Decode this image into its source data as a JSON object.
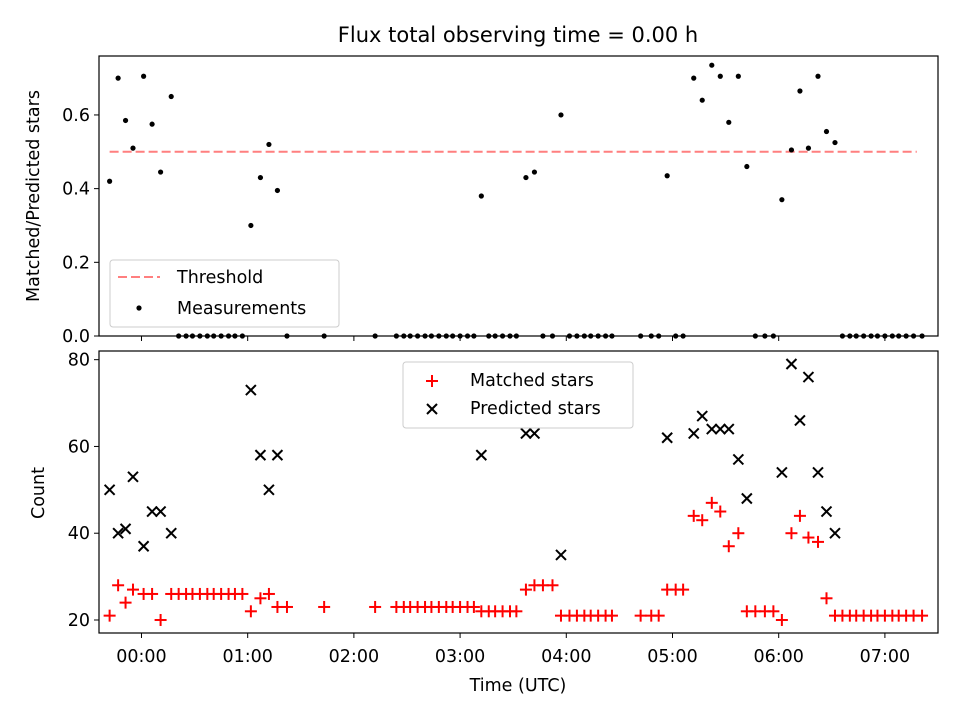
{
  "chart_data": [
    {
      "type": "scatter",
      "title": "Flux total observing time = 0.00 h",
      "xlabel": "",
      "ylabel": "Matched/Predicted stars",
      "xlim": [
        -0.4,
        7.5
      ],
      "ylim": [
        0,
        0.76
      ],
      "yticks": [
        0.0,
        0.2,
        0.4,
        0.6
      ],
      "ytick_labels": [
        "0.0",
        "0.2",
        "0.4",
        "0.6"
      ],
      "xticks": [
        0,
        1,
        2,
        3,
        4,
        5,
        6,
        7
      ],
      "grid": false,
      "legend_location": "lower left",
      "threshold": {
        "name": "Threshold",
        "color": "#ff7f7f",
        "style": "dashed",
        "x_range": [
          -0.3,
          7.3
        ],
        "value": 0.5
      },
      "series": [
        {
          "name": "Measurements",
          "color": "#000000",
          "marker": "dot",
          "points": [
            [
              -0.3,
              0.42
            ],
            [
              -0.22,
              0.7
            ],
            [
              -0.15,
              0.585
            ],
            [
              -0.08,
              0.51
            ],
            [
              0.02,
              0.705
            ],
            [
              0.1,
              0.575
            ],
            [
              0.18,
              0.445
            ],
            [
              0.28,
              0.65
            ],
            [
              0.35,
              0.0
            ],
            [
              0.42,
              0.0
            ],
            [
              0.48,
              0.0
            ],
            [
              0.55,
              0.0
            ],
            [
              0.62,
              0.0
            ],
            [
              0.68,
              0.0
            ],
            [
              0.75,
              0.0
            ],
            [
              0.82,
              0.0
            ],
            [
              0.88,
              0.0
            ],
            [
              0.95,
              0.0
            ],
            [
              1.03,
              0.3
            ],
            [
              1.12,
              0.43
            ],
            [
              1.2,
              0.52
            ],
            [
              1.28,
              0.395
            ],
            [
              1.37,
              0.0
            ],
            [
              1.72,
              0.0
            ],
            [
              2.2,
              0.0
            ],
            [
              2.4,
              0.0
            ],
            [
              2.47,
              0.0
            ],
            [
              2.53,
              0.0
            ],
            [
              2.6,
              0.0
            ],
            [
              2.67,
              0.0
            ],
            [
              2.73,
              0.0
            ],
            [
              2.8,
              0.0
            ],
            [
              2.87,
              0.0
            ],
            [
              2.93,
              0.0
            ],
            [
              3.0,
              0.0
            ],
            [
              3.07,
              0.0
            ],
            [
              3.13,
              0.0
            ],
            [
              3.2,
              0.38
            ],
            [
              3.27,
              0.0
            ],
            [
              3.33,
              0.0
            ],
            [
              3.4,
              0.0
            ],
            [
              3.47,
              0.0
            ],
            [
              3.53,
              0.0
            ],
            [
              3.62,
              0.43
            ],
            [
              3.7,
              0.445
            ],
            [
              3.78,
              0.0
            ],
            [
              3.87,
              0.0
            ],
            [
              3.95,
              0.6
            ],
            [
              4.03,
              0.0
            ],
            [
              4.1,
              0.0
            ],
            [
              4.17,
              0.0
            ],
            [
              4.23,
              0.0
            ],
            [
              4.3,
              0.0
            ],
            [
              4.37,
              0.0
            ],
            [
              4.43,
              0.0
            ],
            [
              4.7,
              0.0
            ],
            [
              4.8,
              0.0
            ],
            [
              4.87,
              0.0
            ],
            [
              4.95,
              0.435
            ],
            [
              5.03,
              0.0
            ],
            [
              5.1,
              0.0
            ],
            [
              5.2,
              0.7
            ],
            [
              5.28,
              0.64
            ],
            [
              5.37,
              0.735
            ],
            [
              5.45,
              0.705
            ],
            [
              5.53,
              0.58
            ],
            [
              5.62,
              0.705
            ],
            [
              5.7,
              0.46
            ],
            [
              5.78,
              0.0
            ],
            [
              5.87,
              0.0
            ],
            [
              5.95,
              0.0
            ],
            [
              6.03,
              0.37
            ],
            [
              6.12,
              0.505
            ],
            [
              6.2,
              0.665
            ],
            [
              6.28,
              0.51
            ],
            [
              6.37,
              0.705
            ],
            [
              6.45,
              0.555
            ],
            [
              6.53,
              0.525
            ],
            [
              6.6,
              0.0
            ],
            [
              6.67,
              0.0
            ],
            [
              6.73,
              0.0
            ],
            [
              6.8,
              0.0
            ],
            [
              6.87,
              0.0
            ],
            [
              6.93,
              0.0
            ],
            [
              7.0,
              0.0
            ],
            [
              7.07,
              0.0
            ],
            [
              7.13,
              0.0
            ],
            [
              7.2,
              0.0
            ],
            [
              7.27,
              0.0
            ],
            [
              7.35,
              0.0
            ]
          ]
        }
      ]
    },
    {
      "type": "scatter",
      "title": "",
      "xlabel": "Time (UTC)",
      "ylabel": "Count",
      "xlim": [
        -0.4,
        7.5
      ],
      "ylim": [
        17,
        82
      ],
      "yticks": [
        20,
        40,
        60,
        80
      ],
      "ytick_labels": [
        "20",
        "40",
        "60",
        "80"
      ],
      "xticks": [
        0,
        1,
        2,
        3,
        4,
        5,
        6,
        7
      ],
      "xtick_labels": [
        "00:00",
        "01:00",
        "02:00",
        "03:00",
        "04:00",
        "05:00",
        "06:00",
        "07:00"
      ],
      "grid": false,
      "legend_location": "upper center",
      "series": [
        {
          "name": "Matched stars",
          "color": "#ff0000",
          "marker": "plus",
          "points": [
            [
              -0.3,
              21
            ],
            [
              -0.22,
              28
            ],
            [
              -0.15,
              24
            ],
            [
              -0.08,
              27
            ],
            [
              0.02,
              26
            ],
            [
              0.1,
              26
            ],
            [
              0.18,
              20
            ],
            [
              0.28,
              26
            ],
            [
              0.35,
              26
            ],
            [
              0.42,
              26
            ],
            [
              0.48,
              26
            ],
            [
              0.55,
              26
            ],
            [
              0.62,
              26
            ],
            [
              0.68,
              26
            ],
            [
              0.75,
              26
            ],
            [
              0.82,
              26
            ],
            [
              0.88,
              26
            ],
            [
              0.95,
              26
            ],
            [
              1.03,
              22
            ],
            [
              1.12,
              25
            ],
            [
              1.2,
              26
            ],
            [
              1.28,
              23
            ],
            [
              1.37,
              23
            ],
            [
              1.72,
              23
            ],
            [
              2.2,
              23
            ],
            [
              2.4,
              23
            ],
            [
              2.47,
              23
            ],
            [
              2.53,
              23
            ],
            [
              2.6,
              23
            ],
            [
              2.67,
              23
            ],
            [
              2.73,
              23
            ],
            [
              2.8,
              23
            ],
            [
              2.87,
              23
            ],
            [
              2.93,
              23
            ],
            [
              3.0,
              23
            ],
            [
              3.07,
              23
            ],
            [
              3.13,
              23
            ],
            [
              3.2,
              22
            ],
            [
              3.27,
              22
            ],
            [
              3.33,
              22
            ],
            [
              3.4,
              22
            ],
            [
              3.47,
              22
            ],
            [
              3.53,
              22
            ],
            [
              3.62,
              27
            ],
            [
              3.7,
              28
            ],
            [
              3.78,
              28
            ],
            [
              3.87,
              28
            ],
            [
              3.95,
              21
            ],
            [
              4.03,
              21
            ],
            [
              4.1,
              21
            ],
            [
              4.17,
              21
            ],
            [
              4.23,
              21
            ],
            [
              4.3,
              21
            ],
            [
              4.37,
              21
            ],
            [
              4.43,
              21
            ],
            [
              4.7,
              21
            ],
            [
              4.8,
              21
            ],
            [
              4.87,
              21
            ],
            [
              4.95,
              27
            ],
            [
              5.03,
              27
            ],
            [
              5.1,
              27
            ],
            [
              5.2,
              44
            ],
            [
              5.28,
              43
            ],
            [
              5.37,
              47
            ],
            [
              5.45,
              45
            ],
            [
              5.53,
              37
            ],
            [
              5.62,
              40
            ],
            [
              5.7,
              22
            ],
            [
              5.78,
              22
            ],
            [
              5.87,
              22
            ],
            [
              5.95,
              22
            ],
            [
              6.03,
              20
            ],
            [
              6.12,
              40
            ],
            [
              6.2,
              44
            ],
            [
              6.28,
              39
            ],
            [
              6.37,
              38
            ],
            [
              6.45,
              25
            ],
            [
              6.53,
              21
            ],
            [
              6.6,
              21
            ],
            [
              6.67,
              21
            ],
            [
              6.73,
              21
            ],
            [
              6.8,
              21
            ],
            [
              6.87,
              21
            ],
            [
              6.93,
              21
            ],
            [
              7.0,
              21
            ],
            [
              7.07,
              21
            ],
            [
              7.13,
              21
            ],
            [
              7.2,
              21
            ],
            [
              7.27,
              21
            ],
            [
              7.35,
              21
            ]
          ]
        },
        {
          "name": "Predicted stars",
          "color": "#000000",
          "marker": "x",
          "points": [
            [
              -0.3,
              50
            ],
            [
              -0.22,
              40
            ],
            [
              -0.15,
              41
            ],
            [
              -0.08,
              53
            ],
            [
              0.02,
              37
            ],
            [
              0.1,
              45
            ],
            [
              0.18,
              45
            ],
            [
              0.28,
              40
            ],
            [
              1.03,
              73
            ],
            [
              1.12,
              58
            ],
            [
              1.2,
              50
            ],
            [
              1.28,
              58
            ],
            [
              3.2,
              58
            ],
            [
              3.62,
              63
            ],
            [
              3.7,
              63
            ],
            [
              3.95,
              35
            ],
            [
              4.95,
              62
            ],
            [
              5.2,
              63
            ],
            [
              5.28,
              67
            ],
            [
              5.37,
              64
            ],
            [
              5.45,
              64
            ],
            [
              5.53,
              64
            ],
            [
              5.62,
              57
            ],
            [
              5.7,
              48
            ],
            [
              6.03,
              54
            ],
            [
              6.12,
              79
            ],
            [
              6.2,
              66
            ],
            [
              6.28,
              76
            ],
            [
              6.37,
              54
            ],
            [
              6.45,
              45
            ],
            [
              6.53,
              40
            ]
          ]
        }
      ]
    }
  ]
}
